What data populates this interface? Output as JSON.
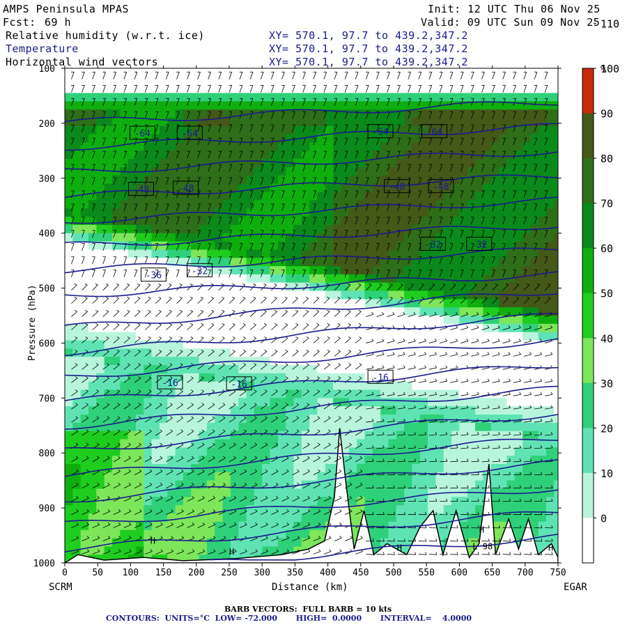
{
  "header": {
    "model": "AMPS Peninsula MPAS",
    "fcst_label": "Fcst:",
    "fcst_value": "69 h",
    "init": "Init: 12 UTC Thu 06 Nov 25",
    "valid": "Valid: 09 UTC Sun 09 Nov 25",
    "fields": [
      {
        "name": "Relative humidity (w.r.t. ice)",
        "xy": "XY= 570.1, 97.7 to 439.2,347.2",
        "color": "#000000"
      },
      {
        "name": "Temperature",
        "xy": "XY= 570.1, 97.7 to 439.2,347.2",
        "color": "#1a1a8c"
      },
      {
        "name": "Horizontal wind vectors",
        "xy": "XY= 570.1, 97.7 to 439.2,347.2",
        "color": "#000000"
      }
    ]
  },
  "footer": {
    "barb_note": "BARB VECTORS:  FULL BARB = 10 kts",
    "contour_note": "CONTOURS:  UNITS=°C  LOW= -72.000       HIGH=  0.0000       INTERVAL=    4.0000"
  },
  "chart_data": {
    "type": "heatmap",
    "title": "",
    "xlabel": "Distance (km)",
    "ylabel": "Pressure (hPa)",
    "xlim": [
      0,
      750
    ],
    "ylim": [
      1000,
      100
    ],
    "x_ticks": [
      0,
      50,
      100,
      150,
      200,
      250,
      300,
      350,
      400,
      450,
      500,
      550,
      600,
      650,
      700,
      750
    ],
    "y_ticks": [
      100,
      200,
      300,
      400,
      500,
      600,
      700,
      800,
      900,
      1000
    ],
    "endpoint_labels": {
      "left": "SCRM",
      "right": "EGAR"
    },
    "colorbar": {
      "unit": "%",
      "tick_labels": [
        "0",
        "10",
        "20",
        "30",
        "40",
        "50",
        "60",
        "70",
        "80",
        "90",
        "100",
        "110"
      ],
      "bins": [
        {
          "min": -10,
          "max": 30,
          "color": "#ffffff"
        },
        {
          "min": 30,
          "max": 40,
          "color": "#b8f5dc"
        },
        {
          "min": 40,
          "max": 50,
          "color": "#5fe3b4"
        },
        {
          "min": 50,
          "max": 60,
          "color": "#2fd07a"
        },
        {
          "min": 60,
          "max": 70,
          "color": "#7de65a"
        },
        {
          "min": 70,
          "max": 80,
          "color": "#1ecd1e"
        },
        {
          "min": 80,
          "max": 90,
          "color": "#0fae0f"
        },
        {
          "min": 90,
          "max": 100,
          "color": "#0a8a1a"
        },
        {
          "min": 100,
          "max": 110,
          "color": "#2e6e18"
        },
        {
          "min": 110,
          "max": 120,
          "color": "#445818"
        },
        {
          "min": 120,
          "max": 130,
          "color": "#c82a0a"
        }
      ]
    },
    "temperature_contours": {
      "units": "°C",
      "low": -72,
      "high": 0,
      "interval": 4,
      "color": "#1a1a8c",
      "labels": [
        {
          "text": "-64",
          "x": 118,
          "p": 218
        },
        {
          "text": "-64",
          "x": 190,
          "p": 218
        },
        {
          "text": "-64",
          "x": 480,
          "p": 215
        },
        {
          "text": "-64",
          "x": 562,
          "p": 215
        },
        {
          "text": "-48",
          "x": 116,
          "p": 320
        },
        {
          "text": "-48",
          "x": 184,
          "p": 318
        },
        {
          "text": "-48",
          "x": 505,
          "p": 315
        },
        {
          "text": "-48",
          "x": 572,
          "p": 315
        },
        {
          "text": "-32",
          "x": 560,
          "p": 420
        },
        {
          "text": "-32",
          "x": 630,
          "p": 420
        },
        {
          "text": "-36",
          "x": 135,
          "p": 476
        },
        {
          "text": "-32",
          "x": 205,
          "p": 468
        },
        {
          "text": "-16",
          "x": 160,
          "p": 672
        },
        {
          "text": "-16",
          "x": 265,
          "p": 674
        },
        {
          "text": "-16",
          "x": 480,
          "p": 662
        }
      ]
    },
    "wind_barbs": {
      "full_barb_kts": 10
    },
    "misc_labels": [
      {
        "text": "H",
        "x": 130,
        "p": 965
      },
      {
        "text": "H",
        "x": 250,
        "p": 985
      },
      {
        "text": "H",
        "x": 505,
        "p": 978
      },
      {
        "text": "H",
        "x": 630,
        "p": 945
      },
      {
        "text": "H",
        "x": 735,
        "p": 978
      },
      {
        "text": "L 98",
        "x": 620,
        "p": 975
      }
    ]
  }
}
